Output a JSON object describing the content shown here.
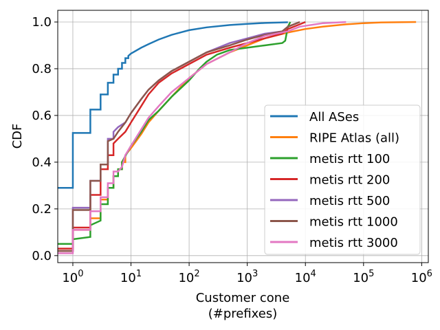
{
  "chart_data": {
    "type": "line",
    "step": true,
    "xscale": "log",
    "xlim": [
      0.55,
      1300000
    ],
    "ylim": [
      -0.03,
      1.05
    ],
    "grid": true,
    "legend_position": "lower-right",
    "xlabel": "Customer cone",
    "xlabel_line2": "(#prefixes)",
    "ylabel": "CDF",
    "x_ticks": [
      {
        "value": 1,
        "base": "10",
        "exp": "0"
      },
      {
        "value": 10,
        "base": "10",
        "exp": "1"
      },
      {
        "value": 100,
        "base": "10",
        "exp": "2"
      },
      {
        "value": 1000,
        "base": "10",
        "exp": "3"
      },
      {
        "value": 10000,
        "base": "10",
        "exp": "4"
      },
      {
        "value": 100000,
        "base": "10",
        "exp": "5"
      },
      {
        "value": 1000000,
        "base": "10",
        "exp": "6"
      }
    ],
    "y_ticks": [
      {
        "value": 0.0,
        "label": "0.0"
      },
      {
        "value": 0.2,
        "label": "0.2"
      },
      {
        "value": 0.4,
        "label": "0.4"
      },
      {
        "value": 0.6,
        "label": "0.6"
      },
      {
        "value": 0.8,
        "label": "0.8"
      },
      {
        "value": 1.0,
        "label": "1.0"
      }
    ],
    "series": [
      {
        "name": "All ASes",
        "color": "#1f77b4",
        "points": [
          [
            0.5,
            0.29
          ],
          [
            1,
            0.29
          ],
          [
            1,
            0.525
          ],
          [
            2,
            0.525
          ],
          [
            2,
            0.625
          ],
          [
            3,
            0.625
          ],
          [
            3,
            0.69
          ],
          [
            4,
            0.69
          ],
          [
            4,
            0.74
          ],
          [
            5,
            0.74
          ],
          [
            5,
            0.775
          ],
          [
            6,
            0.775
          ],
          [
            6,
            0.8
          ],
          [
            7,
            0.8
          ],
          [
            7,
            0.825
          ],
          [
            8,
            0.825
          ],
          [
            8,
            0.845
          ],
          [
            9,
            0.845
          ],
          [
            9,
            0.855
          ],
          [
            10,
            0.865
          ],
          [
            15,
            0.89
          ],
          [
            20,
            0.905
          ],
          [
            30,
            0.925
          ],
          [
            50,
            0.945
          ],
          [
            100,
            0.965
          ],
          [
            200,
            0.977
          ],
          [
            500,
            0.987
          ],
          [
            1000,
            0.992
          ],
          [
            2000,
            0.996
          ],
          [
            5000,
            0.999
          ]
        ]
      },
      {
        "name": "RIPE Atlas (all)",
        "color": "#ff7f0e",
        "points": [
          [
            0.5,
            0.02
          ],
          [
            1,
            0.02
          ],
          [
            1,
            0.11
          ],
          [
            2,
            0.11
          ],
          [
            2,
            0.16
          ],
          [
            3,
            0.16
          ],
          [
            3,
            0.24
          ],
          [
            4,
            0.24
          ],
          [
            4,
            0.29
          ],
          [
            5,
            0.29
          ],
          [
            5,
            0.34
          ],
          [
            6,
            0.34
          ],
          [
            6,
            0.37
          ],
          [
            7,
            0.37
          ],
          [
            7,
            0.4
          ],
          [
            8,
            0.4
          ],
          [
            8,
            0.43
          ],
          [
            10,
            0.46
          ],
          [
            15,
            0.52
          ],
          [
            20,
            0.57
          ],
          [
            30,
            0.62
          ],
          [
            50,
            0.68
          ],
          [
            100,
            0.76
          ],
          [
            200,
            0.82
          ],
          [
            500,
            0.87
          ],
          [
            1000,
            0.9
          ],
          [
            2000,
            0.93
          ],
          [
            5000,
            0.955
          ],
          [
            10000,
            0.97
          ],
          [
            20000,
            0.98
          ],
          [
            50000,
            0.99
          ],
          [
            100000,
            0.995
          ],
          [
            200000,
            0.998
          ],
          [
            800000,
            1.0
          ]
        ]
      },
      {
        "name": "metis rtt 100",
        "color": "#2ca02c",
        "points": [
          [
            0.5,
            0.05
          ],
          [
            1,
            0.05
          ],
          [
            1,
            0.07
          ],
          [
            2,
            0.08
          ],
          [
            2,
            0.13
          ],
          [
            3,
            0.15
          ],
          [
            3,
            0.22
          ],
          [
            4,
            0.22
          ],
          [
            4,
            0.29
          ],
          [
            5,
            0.29
          ],
          [
            5,
            0.34
          ],
          [
            6,
            0.34
          ],
          [
            6,
            0.37
          ],
          [
            7,
            0.37
          ],
          [
            7,
            0.4
          ],
          [
            10,
            0.47
          ],
          [
            15,
            0.53
          ],
          [
            20,
            0.58
          ],
          [
            30,
            0.62
          ],
          [
            50,
            0.68
          ],
          [
            100,
            0.75
          ],
          [
            150,
            0.8
          ],
          [
            200,
            0.83
          ],
          [
            300,
            0.86
          ],
          [
            500,
            0.88
          ],
          [
            1000,
            0.89
          ],
          [
            2000,
            0.9
          ],
          [
            4000,
            0.91
          ],
          [
            4500,
            0.92
          ],
          [
            5000,
            0.98
          ],
          [
            5500,
            1.0
          ]
        ]
      },
      {
        "name": "metis rtt 200",
        "color": "#d62728",
        "points": [
          [
            0.5,
            0.03
          ],
          [
            1,
            0.03
          ],
          [
            1,
            0.12
          ],
          [
            2,
            0.12
          ],
          [
            2,
            0.26
          ],
          [
            3,
            0.26
          ],
          [
            3,
            0.37
          ],
          [
            4,
            0.37
          ],
          [
            4,
            0.43
          ],
          [
            5,
            0.43
          ],
          [
            5,
            0.48
          ],
          [
            6,
            0.5
          ],
          [
            8,
            0.53
          ],
          [
            10,
            0.57
          ],
          [
            15,
            0.64
          ],
          [
            20,
            0.69
          ],
          [
            30,
            0.74
          ],
          [
            50,
            0.78
          ],
          [
            100,
            0.82
          ],
          [
            200,
            0.86
          ],
          [
            500,
            0.89
          ],
          [
            1000,
            0.91
          ],
          [
            2000,
            0.93
          ],
          [
            4000,
            0.95
          ],
          [
            5000,
            0.97
          ],
          [
            8000,
            0.99
          ],
          [
            10000,
            1.0
          ]
        ]
      },
      {
        "name": "metis rtt 500",
        "color": "#9467bd",
        "points": [
          [
            0.5,
            0.02
          ],
          [
            1,
            0.02
          ],
          [
            1,
            0.205
          ],
          [
            2,
            0.205
          ],
          [
            2,
            0.32
          ],
          [
            3,
            0.32
          ],
          [
            3,
            0.39
          ],
          [
            4,
            0.39
          ],
          [
            4,
            0.5
          ],
          [
            5,
            0.5
          ],
          [
            5,
            0.53
          ],
          [
            6,
            0.55
          ],
          [
            8,
            0.57
          ],
          [
            10,
            0.61
          ],
          [
            15,
            0.67
          ],
          [
            20,
            0.71
          ],
          [
            30,
            0.75
          ],
          [
            50,
            0.79
          ],
          [
            100,
            0.83
          ],
          [
            200,
            0.87
          ],
          [
            500,
            0.91
          ],
          [
            1000,
            0.93
          ],
          [
            2000,
            0.95
          ],
          [
            4000,
            0.96
          ],
          [
            5000,
            0.98
          ],
          [
            8000,
            1.0
          ]
        ]
      },
      {
        "name": "metis rtt 1000",
        "color": "#8c564b",
        "points": [
          [
            0.5,
            0.02
          ],
          [
            1,
            0.02
          ],
          [
            1,
            0.195
          ],
          [
            2,
            0.195
          ],
          [
            2,
            0.32
          ],
          [
            3,
            0.32
          ],
          [
            3,
            0.39
          ],
          [
            4,
            0.39
          ],
          [
            4,
            0.49
          ],
          [
            5,
            0.5
          ],
          [
            6,
            0.53
          ],
          [
            8,
            0.57
          ],
          [
            10,
            0.61
          ],
          [
            15,
            0.67
          ],
          [
            20,
            0.71
          ],
          [
            30,
            0.75
          ],
          [
            50,
            0.79
          ],
          [
            100,
            0.83
          ],
          [
            200,
            0.87
          ],
          [
            500,
            0.9
          ],
          [
            1000,
            0.925
          ],
          [
            2000,
            0.945
          ],
          [
            4000,
            0.96
          ],
          [
            5000,
            0.98
          ],
          [
            8000,
            1.0
          ]
        ]
      },
      {
        "name": "metis rtt 3000",
        "color": "#e377c2",
        "points": [
          [
            0.5,
            0.01
          ],
          [
            1,
            0.01
          ],
          [
            1,
            0.11
          ],
          [
            2,
            0.11
          ],
          [
            2,
            0.19
          ],
          [
            3,
            0.19
          ],
          [
            3,
            0.25
          ],
          [
            4,
            0.25
          ],
          [
            4,
            0.31
          ],
          [
            5,
            0.31
          ],
          [
            5,
            0.36
          ],
          [
            6,
            0.36
          ],
          [
            7,
            0.38
          ],
          [
            8,
            0.43
          ],
          [
            10,
            0.47
          ],
          [
            15,
            0.54
          ],
          [
            20,
            0.59
          ],
          [
            30,
            0.64
          ],
          [
            50,
            0.7
          ],
          [
            100,
            0.76
          ],
          [
            200,
            0.82
          ],
          [
            500,
            0.87
          ],
          [
            1000,
            0.91
          ],
          [
            2000,
            0.94
          ],
          [
            5000,
            0.96
          ],
          [
            8000,
            0.98
          ],
          [
            20000,
            0.995
          ],
          [
            50000,
            1.0
          ]
        ]
      }
    ]
  }
}
